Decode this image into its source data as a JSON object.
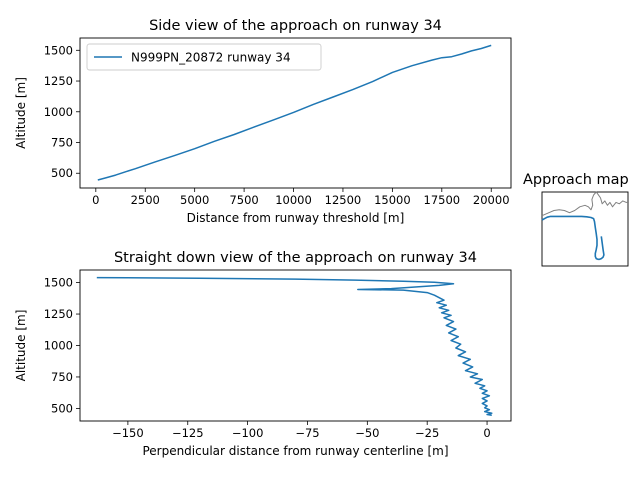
{
  "colors": {
    "series": "#1f77b4",
    "map_context": "#808080"
  },
  "chart_data": [
    {
      "type": "line",
      "title": "Side view of the approach on runway 34",
      "xlabel": "Distance from runway threshold [m]",
      "ylabel": "Altitude [m]",
      "xlim": [
        -800,
        21000
      ],
      "ylim": [
        380,
        1600
      ],
      "xticks": [
        0,
        2500,
        5000,
        7500,
        10000,
        12500,
        15000,
        17500,
        20000
      ],
      "yticks": [
        500,
        750,
        1000,
        1250,
        1500
      ],
      "legend": {
        "placement": "top-left",
        "entries": [
          "N999PN_20872 runway 34"
        ]
      },
      "grid": false,
      "series": [
        {
          "name": "N999PN_20872 runway 34",
          "x": [
            100,
            500,
            1000,
            1500,
            2000,
            2500,
            3000,
            3500,
            4000,
            5000,
            6000,
            7000,
            8000,
            9000,
            10000,
            11000,
            12000,
            13000,
            14000,
            15000,
            16000,
            17000,
            17500,
            18000,
            18500,
            19000,
            19500,
            20000
          ],
          "y": [
            445,
            462,
            485,
            512,
            537,
            565,
            592,
            618,
            645,
            700,
            760,
            815,
            875,
            935,
            995,
            1060,
            1120,
            1180,
            1245,
            1320,
            1375,
            1420,
            1440,
            1448,
            1470,
            1495,
            1515,
            1540
          ]
        }
      ]
    },
    {
      "type": "line",
      "title": "Straight down view of the approach on runway 34",
      "xlabel": "Perpendicular distance from runway centerline [m]",
      "ylabel": "Altitude [m]",
      "xlim": [
        -170,
        10
      ],
      "ylim": [
        400,
        1600
      ],
      "xticks": [
        -150,
        -125,
        -100,
        -75,
        -50,
        -25,
        0
      ],
      "xtick_labels": [
        "−150",
        "−125",
        "−100",
        "−75",
        "−50",
        "−25",
        "0"
      ],
      "yticks": [
        500,
        750,
        1000,
        1250,
        1500
      ],
      "grid": false,
      "series": [
        {
          "x": [
            -163,
            -120,
            -80,
            -55,
            -35,
            -22,
            -18,
            -14,
            -20,
            -30,
            -40,
            -54,
            -35,
            -25,
            -22,
            -20,
            -18,
            -21,
            -17,
            -20,
            -16,
            -19,
            -15,
            -18,
            -14,
            -17,
            -13,
            -16,
            -12,
            -15,
            -11,
            -13,
            -9,
            -12,
            -7,
            -10,
            -6,
            -9,
            -4,
            -7,
            -2,
            -5,
            -1,
            -3,
            0,
            -2,
            1,
            -2,
            0,
            -2,
            0,
            -1,
            1,
            -1,
            2,
            0,
            2
          ],
          "y": [
            1540,
            1535,
            1528,
            1520,
            1510,
            1503,
            1497,
            1490,
            1478,
            1465,
            1452,
            1445,
            1440,
            1420,
            1400,
            1380,
            1360,
            1340,
            1320,
            1300,
            1280,
            1260,
            1240,
            1220,
            1190,
            1160,
            1130,
            1100,
            1070,
            1040,
            1010,
            980,
            950,
            920,
            890,
            860,
            830,
            800,
            775,
            750,
            730,
            700,
            680,
            660,
            640,
            620,
            600,
            580,
            560,
            540,
            520,
            505,
            490,
            475,
            462,
            452,
            445
          ]
        }
      ]
    },
    {
      "type": "line",
      "title": "Approach map",
      "axes": "off",
      "legend": "none",
      "series": [
        {
          "x": [
            0.0,
            0.03,
            0.06,
            0.1,
            0.16,
            0.22,
            0.3,
            0.38,
            0.46,
            0.52,
            0.57,
            0.6,
            0.61,
            0.62,
            0.63,
            0.64,
            0.64,
            0.63,
            0.62,
            0.62,
            0.63,
            0.65,
            0.67,
            0.69,
            0.71,
            0.72,
            0.71,
            0.69
          ],
          "y": [
            0.62,
            0.64,
            0.66,
            0.67,
            0.67,
            0.67,
            0.67,
            0.67,
            0.67,
            0.665,
            0.655,
            0.64,
            0.6,
            0.52,
            0.44,
            0.36,
            0.28,
            0.22,
            0.17,
            0.13,
            0.1,
            0.09,
            0.09,
            0.1,
            0.12,
            0.15,
            0.22,
            0.4
          ]
        },
        {
          "x": [
            0.0,
            0.04,
            0.08,
            0.14,
            0.2,
            0.26,
            0.32,
            0.38,
            0.44,
            0.5,
            0.54,
            0.57,
            0.59,
            0.58,
            0.6,
            0.63,
            0.65,
            0.68,
            0.7,
            0.73,
            0.76,
            0.79,
            0.82,
            0.86,
            0.9,
            0.94,
            0.98,
            1.0
          ],
          "y": [
            0.68,
            0.7,
            0.72,
            0.75,
            0.76,
            0.75,
            0.72,
            0.75,
            0.8,
            0.82,
            0.8,
            0.76,
            0.82,
            0.9,
            0.96,
            1.0,
            0.97,
            0.92,
            0.84,
            0.88,
            0.82,
            0.86,
            0.8,
            0.86,
            0.84,
            0.88,
            0.86,
            0.86
          ]
        }
      ]
    }
  ]
}
